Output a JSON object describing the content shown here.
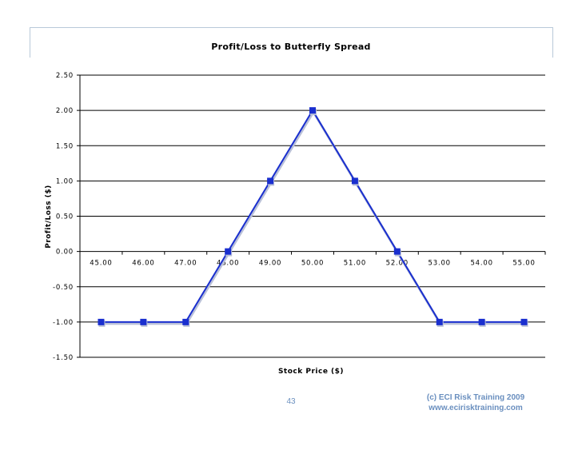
{
  "slide": {
    "page_number": "43",
    "copyright_line1": "(c) ECI Risk Training 2009",
    "copyright_line2": "www.ecirisktraining.com"
  },
  "chart_data": {
    "type": "line",
    "title": "Profit/Loss to Butterfly Spread",
    "xlabel": "Stock Price ($)",
    "ylabel": "Profit/Loss ($)",
    "categories": [
      "45.00",
      "46.00",
      "47.00",
      "48.00",
      "49.00",
      "50.00",
      "51.00",
      "52.00",
      "53.00",
      "54.00",
      "55.00"
    ],
    "series": [
      {
        "values": [
          -1.0,
          -1.0,
          -1.0,
          0.0,
          1.0,
          2.0,
          1.0,
          0.0,
          -1.0,
          -1.0,
          -1.0
        ],
        "color": "#1a2fcf",
        "marker": "square"
      }
    ],
    "yticks": [
      "2.50",
      "2.00",
      "1.50",
      "1.00",
      "0.50",
      "0.00",
      "-0.50",
      "-1.00",
      "-1.50"
    ],
    "ylim": [
      -1.5,
      2.5
    ],
    "grid": true,
    "legend": "none"
  }
}
